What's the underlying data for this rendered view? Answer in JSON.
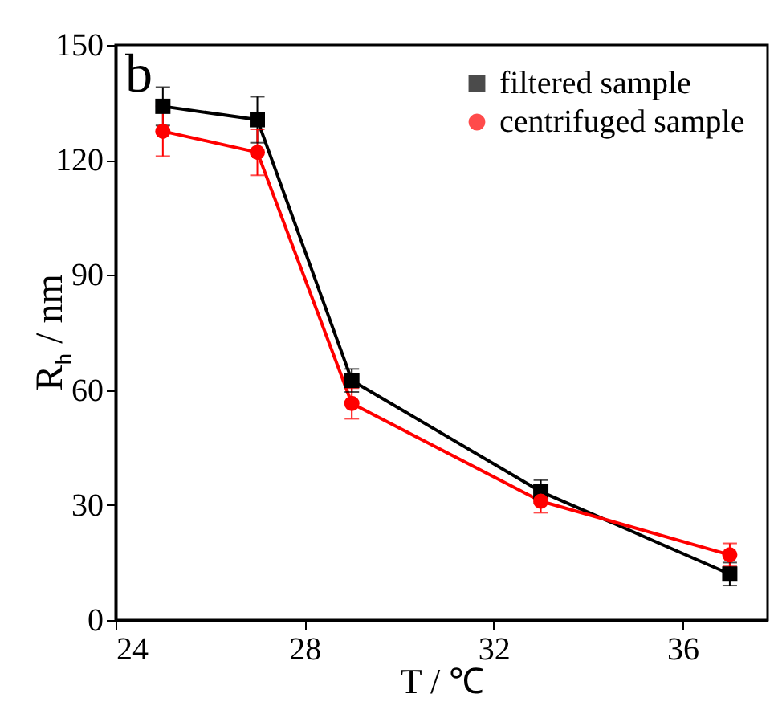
{
  "chart_data": {
    "type": "line",
    "xlabel": "T / ℃",
    "ylabel": "R$_{h}$ / nm",
    "annotations": [
      "b"
    ],
    "x": [
      25,
      27,
      29,
      33,
      37
    ],
    "series": [
      {
        "name": "filtered sample",
        "color": "#000000",
        "marker": "square",
        "values": [
          134,
          130.5,
          62.5,
          33.5,
          12
        ],
        "errors": [
          5,
          6,
          3,
          3,
          3
        ]
      },
      {
        "name": "centrifuged sample",
        "color": "#ff0000",
        "marker": "circle",
        "values": [
          127.5,
          122,
          56.5,
          31,
          17
        ],
        "errors": [
          6.5,
          6,
          4,
          3,
          3
        ]
      }
    ],
    "xlim": [
      24,
      37.8
    ],
    "xticks": [
      24,
      28,
      32,
      36
    ],
    "ylim": [
      0,
      150
    ],
    "yticks": [
      0,
      30,
      60,
      90,
      120,
      150
    ],
    "grid": false,
    "legend": "top right",
    "line_style": "solid"
  }
}
